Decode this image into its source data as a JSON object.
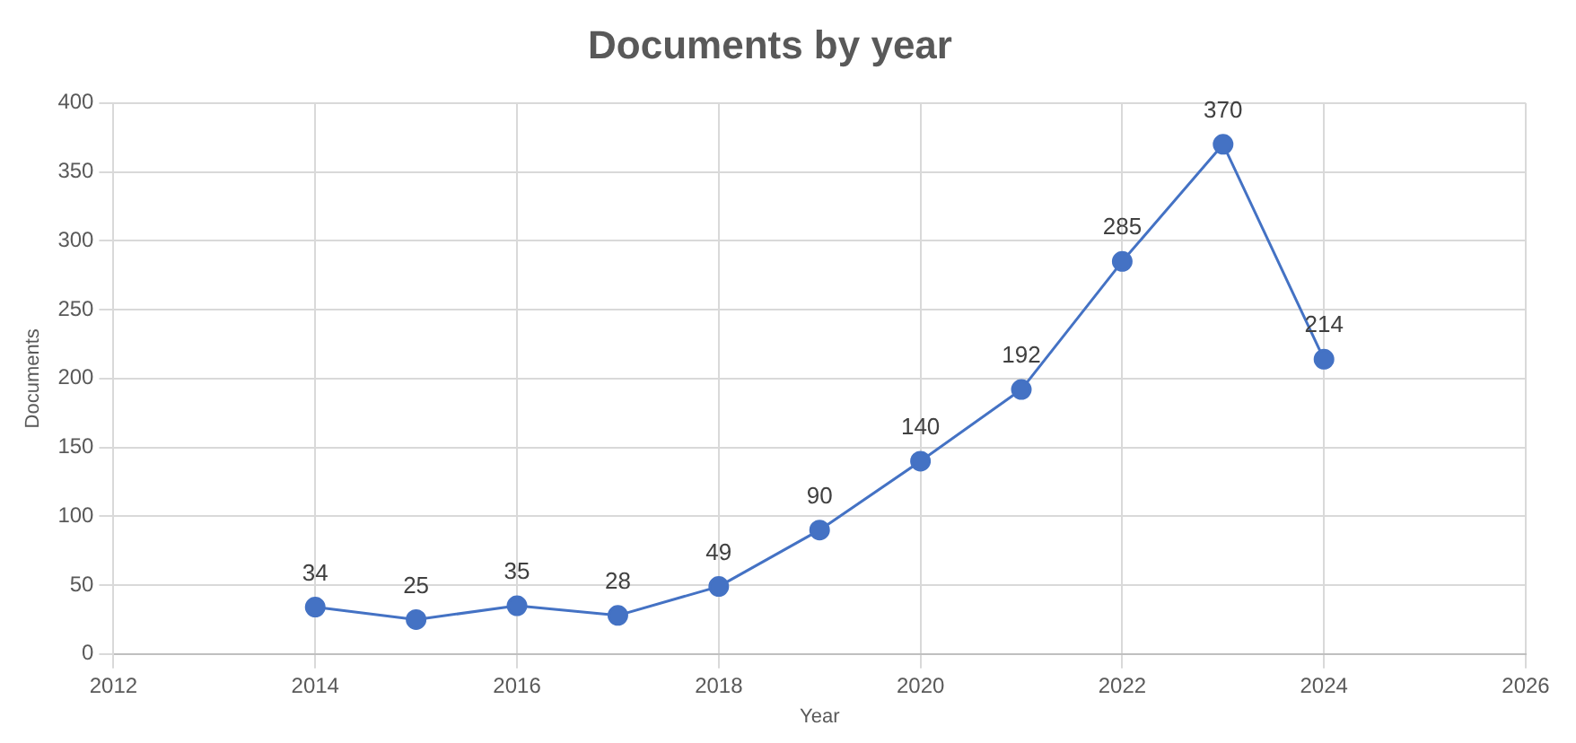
{
  "chart_data": {
    "type": "line",
    "title": "Documents by year",
    "xlabel": "Year",
    "ylabel": "Documents",
    "x": [
      2014,
      2015,
      2016,
      2017,
      2018,
      2019,
      2020,
      2021,
      2022,
      2023,
      2024
    ],
    "series": [
      {
        "color": "#4472c4",
        "values": [
          34,
          25,
          35,
          28,
          49,
          90,
          140,
          192,
          285,
          370,
          214
        ]
      }
    ],
    "xlim": [
      2012,
      2026
    ],
    "xticks": [
      2012,
      2014,
      2016,
      2018,
      2020,
      2022,
      2024,
      2026
    ],
    "ylim": [
      0,
      400
    ],
    "yticks": [
      0,
      50,
      100,
      150,
      200,
      250,
      300,
      350,
      400
    ],
    "grid": true,
    "marker": "circle",
    "line_style": "solid",
    "data_labels": true,
    "legend": false
  }
}
